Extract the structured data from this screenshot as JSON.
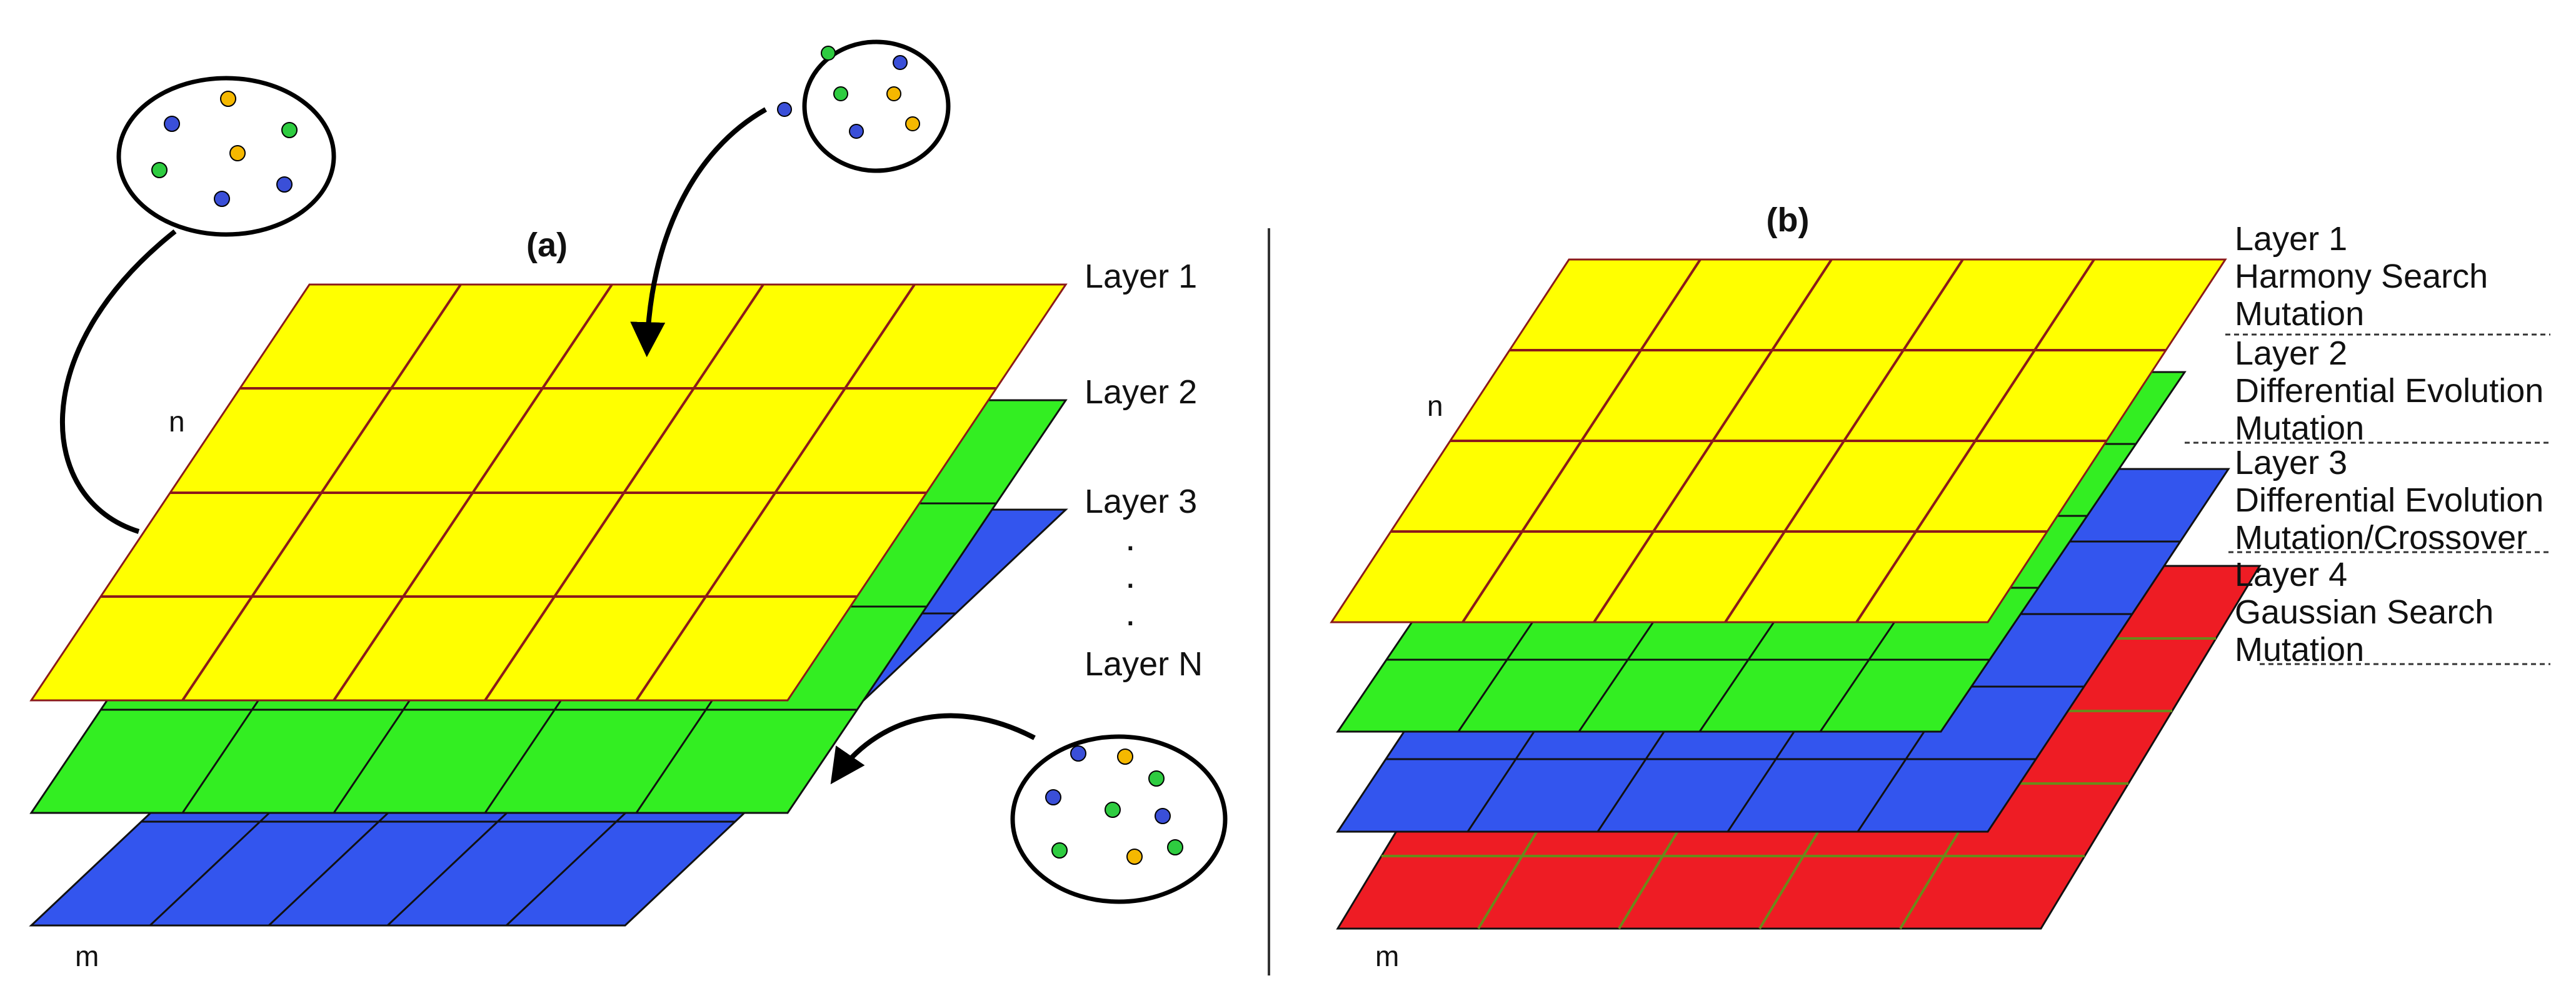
{
  "panel_a": {
    "label": "(a)",
    "layer_labels": [
      "Layer 1",
      "Layer 2",
      "Layer 3",
      "Layer N"
    ],
    "ellipsis": ".",
    "axis_n": "n",
    "axis_m": "m"
  },
  "panel_b": {
    "label": "(b)",
    "axis_n": "n",
    "axis_m": "m",
    "layers": [
      {
        "lines": [
          "Layer 1",
          "Harmony Search",
          "Mutation"
        ]
      },
      {
        "lines": [
          "Layer 2",
          "Differential Evolution",
          "Mutation"
        ]
      },
      {
        "lines": [
          "Layer 3",
          "Differential Evolution",
          "Mutation/Crossover"
        ]
      },
      {
        "lines": [
          "Layer 4",
          "Gaussian Search",
          "Mutation"
        ]
      }
    ]
  },
  "colors": {
    "yellow_layer": "#ffff00",
    "green_layer": "#33ee22",
    "blue_layer": "#3355ee",
    "red_layer": "#ee1c24",
    "grid_line_yellow": "#8b1a1a",
    "grid_line_dark": "#111111",
    "dot_blue": "#3a4fd8",
    "dot_green": "#2ecc40",
    "dot_orange": "#f5b800"
  }
}
